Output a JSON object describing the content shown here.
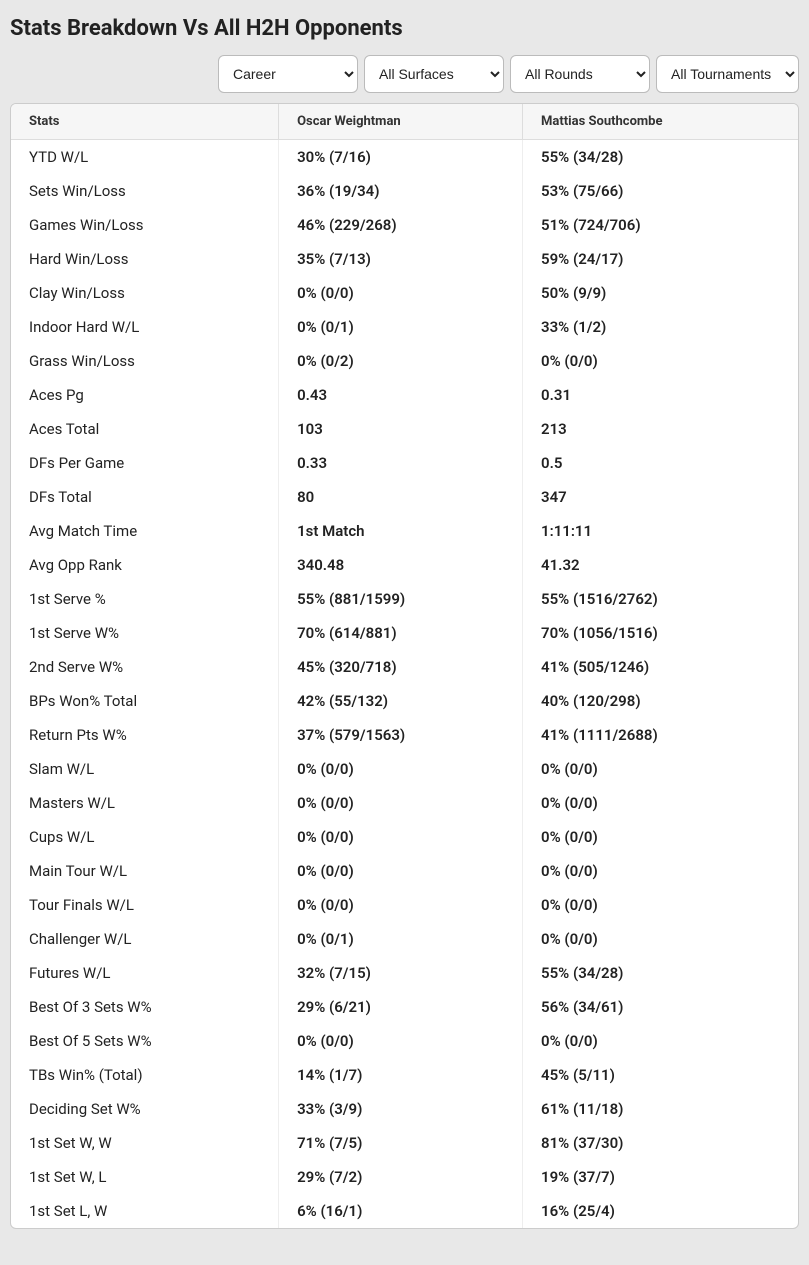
{
  "title": "Stats Breakdown Vs All H2H Opponents",
  "filters": {
    "period": {
      "selected": "Career"
    },
    "surface": {
      "selected": "All Surfaces"
    },
    "round": {
      "selected": "All Rounds"
    },
    "tournament": {
      "selected": "All Tournaments"
    }
  },
  "table": {
    "columns": [
      "Stats",
      "Oscar Weightman",
      "Mattias Southcombe"
    ],
    "rows": [
      [
        "YTD W/L",
        "30% (7/16)",
        "55% (34/28)"
      ],
      [
        "Sets Win/Loss",
        "36% (19/34)",
        "53% (75/66)"
      ],
      [
        "Games Win/Loss",
        "46% (229/268)",
        "51% (724/706)"
      ],
      [
        "Hard Win/Loss",
        "35% (7/13)",
        "59% (24/17)"
      ],
      [
        "Clay Win/Loss",
        "0% (0/0)",
        "50% (9/9)"
      ],
      [
        "Indoor Hard W/L",
        "0% (0/1)",
        "33% (1/2)"
      ],
      [
        "Grass Win/Loss",
        "0% (0/2)",
        "0% (0/0)"
      ],
      [
        "Aces Pg",
        "0.43",
        "0.31"
      ],
      [
        "Aces Total",
        "103",
        "213"
      ],
      [
        "DFs Per Game",
        "0.33",
        "0.5"
      ],
      [
        "DFs Total",
        "80",
        "347"
      ],
      [
        "Avg Match Time",
        "1st Match",
        "1:11:11"
      ],
      [
        "Avg Opp Rank",
        "340.48",
        "41.32"
      ],
      [
        "1st Serve %",
        "55% (881/1599)",
        "55% (1516/2762)"
      ],
      [
        "1st Serve W%",
        "70% (614/881)",
        "70% (1056/1516)"
      ],
      [
        "2nd Serve W%",
        "45% (320/718)",
        "41% (505/1246)"
      ],
      [
        "BPs Won% Total",
        "42% (55/132)",
        "40% (120/298)"
      ],
      [
        "Return Pts W%",
        "37% (579/1563)",
        "41% (1111/2688)"
      ],
      [
        "Slam W/L",
        "0% (0/0)",
        "0% (0/0)"
      ],
      [
        "Masters W/L",
        "0% (0/0)",
        "0% (0/0)"
      ],
      [
        "Cups W/L",
        "0% (0/0)",
        "0% (0/0)"
      ],
      [
        "Main Tour W/L",
        "0% (0/0)",
        "0% (0/0)"
      ],
      [
        "Tour Finals W/L",
        "0% (0/0)",
        "0% (0/0)"
      ],
      [
        "Challenger W/L",
        "0% (0/1)",
        "0% (0/0)"
      ],
      [
        "Futures W/L",
        "32% (7/15)",
        "55% (34/28)"
      ],
      [
        "Best Of 3 Sets W%",
        "29% (6/21)",
        "56% (34/61)"
      ],
      [
        "Best Of 5 Sets W%",
        "0% (0/0)",
        "0% (0/0)"
      ],
      [
        "TBs Win% (Total)",
        "14% (1/7)",
        "45% (5/11)"
      ],
      [
        "Deciding Set W%",
        "33% (3/9)",
        "61% (11/18)"
      ],
      [
        "1st Set W, W",
        "71% (7/5)",
        "81% (37/30)"
      ],
      [
        "1st Set W, L",
        "29% (7/2)",
        "19% (37/7)"
      ],
      [
        "1st Set L, W",
        "6% (16/1)",
        "16% (25/4)"
      ]
    ]
  }
}
